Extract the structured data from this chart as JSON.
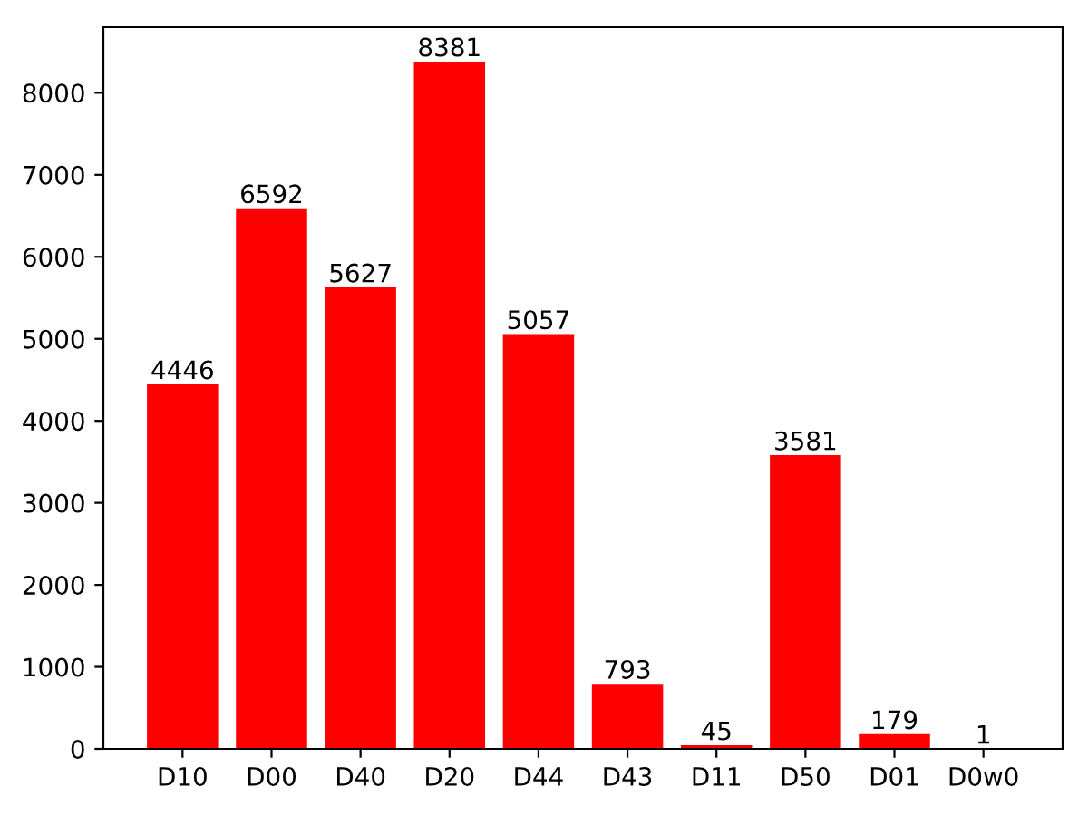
{
  "chart_data": {
    "type": "bar",
    "categories": [
      "D10",
      "D00",
      "D40",
      "D20",
      "D44",
      "D43",
      "D11",
      "D50",
      "D01",
      "D0w0"
    ],
    "values": [
      4446,
      6592,
      5627,
      8381,
      5057,
      793,
      45,
      3581,
      179,
      1
    ],
    "color": "#ff0000",
    "ylim": [
      0,
      8800
    ],
    "yticks": [
      0,
      1000,
      2000,
      3000,
      4000,
      5000,
      6000,
      7000,
      8000
    ],
    "data_labels": true,
    "grid": false
  }
}
